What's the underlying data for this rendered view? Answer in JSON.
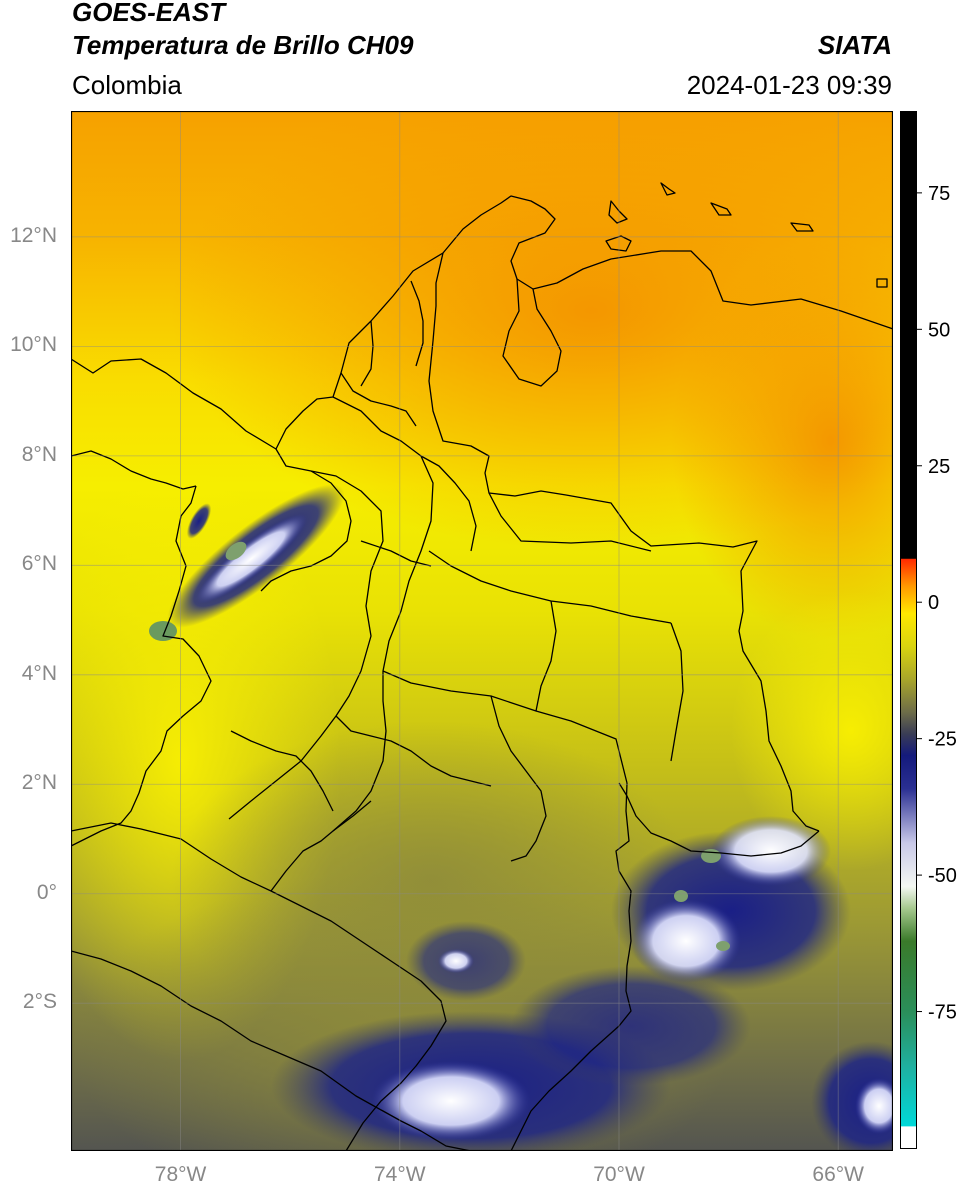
{
  "header": {
    "title_line1": "GOES-EAST",
    "title_line2": "Temperatura de Brillo CH09",
    "region": "Colombia",
    "organization": "SIATA",
    "datetime": "2024-01-23 09:39"
  },
  "map": {
    "lon_range": [
      -80,
      -65
    ],
    "lat_range": [
      -4.7,
      14.3
    ],
    "lon_ticks": [
      {
        "value": -78,
        "label": "78°W"
      },
      {
        "value": -74,
        "label": "74°W"
      },
      {
        "value": -70,
        "label": "70°W"
      },
      {
        "value": -66,
        "label": "66°W"
      }
    ],
    "lat_ticks": [
      {
        "value": 12,
        "label": "12°N"
      },
      {
        "value": 10,
        "label": "10°N"
      },
      {
        "value": 8,
        "label": "8°N"
      },
      {
        "value": 6,
        "label": "6°N"
      },
      {
        "value": 4,
        "label": "4°N"
      },
      {
        "value": 2,
        "label": "2°N"
      },
      {
        "value": 0,
        "label": "0°"
      },
      {
        "value": -2,
        "label": "2°S"
      }
    ],
    "grid": true,
    "colors": {
      "warm": "#f7a300",
      "yellow": "#f9ef00",
      "olive": "#b9b620",
      "grey_olive": "#7b7a48",
      "navy": "#1a1f86",
      "white": "#f4f6ff",
      "green": "#6a9a5e"
    }
  },
  "colorbar": {
    "vmin": -100,
    "vmax": 90,
    "ticks": [
      {
        "value": 75,
        "label": "75"
      },
      {
        "value": 50,
        "label": "50"
      },
      {
        "value": 25,
        "label": "25"
      },
      {
        "value": 0,
        "label": "0"
      },
      {
        "value": -25,
        "label": "-25"
      },
      {
        "value": -50,
        "label": "-50"
      },
      {
        "value": -75,
        "label": "-75"
      }
    ],
    "stops": [
      {
        "value": -100,
        "color": "#ffffff"
      },
      {
        "value": -96,
        "color": "#ffffff"
      },
      {
        "value": -95.9,
        "color": "#00d8d8"
      },
      {
        "value": -85,
        "color": "#1fb0a0"
      },
      {
        "value": -75,
        "color": "#2a8f5a"
      },
      {
        "value": -62,
        "color": "#3a7a2a"
      },
      {
        "value": -56,
        "color": "#a6c98e"
      },
      {
        "value": -52,
        "color": "#f4f8f2"
      },
      {
        "value": -44,
        "color": "#c8c8e8"
      },
      {
        "value": -34,
        "color": "#2a2f92"
      },
      {
        "value": -28,
        "color": "#141a7c"
      },
      {
        "value": -24,
        "color": "#3a3d55"
      },
      {
        "value": -20,
        "color": "#6e6d48"
      },
      {
        "value": -14,
        "color": "#a9a62a"
      },
      {
        "value": -8,
        "color": "#d9d40f"
      },
      {
        "value": -2,
        "color": "#ffe800"
      },
      {
        "value": 3,
        "color": "#ff9a00"
      },
      {
        "value": 8,
        "color": "#ff2a00"
      },
      {
        "value": 8.1,
        "color": "#000000"
      },
      {
        "value": 90,
        "color": "#000000"
      }
    ]
  }
}
